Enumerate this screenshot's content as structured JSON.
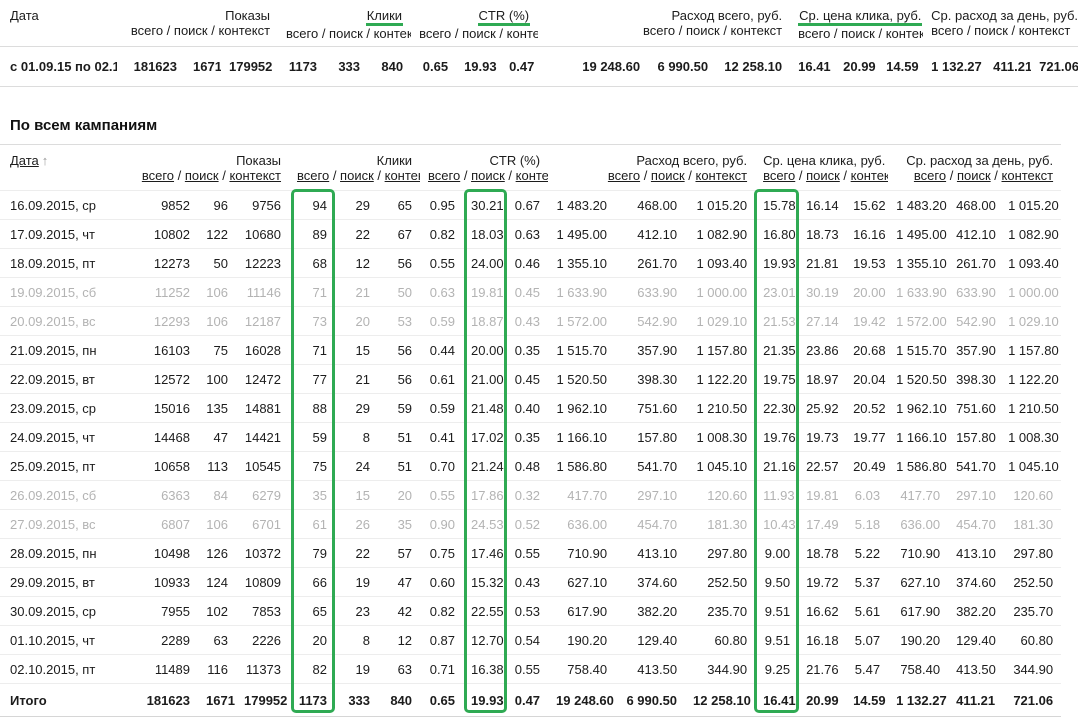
{
  "accent_color": "#2faa53",
  "summary_table": {
    "date_header": "Дата",
    "sub_label": "всего / поиск / контекст",
    "groups": [
      {
        "label": "Показы",
        "highlighted": false
      },
      {
        "label": "Клики",
        "highlighted": true
      },
      {
        "label": "CTR (%)",
        "highlighted": true
      },
      {
        "label": "Расход всего, руб.",
        "highlighted": false
      },
      {
        "label": "Ср. цена клика, руб.",
        "highlighted": true
      },
      {
        "label": "Ср. расход за день, руб.",
        "highlighted": false
      }
    ],
    "row": {
      "period": "с 01.09.15 по 02.10.15",
      "values": [
        "181623",
        "1671",
        "179952",
        "1173",
        "333",
        "840",
        "0.65",
        "19.93",
        "0.47",
        "19 248.60",
        "6 990.50",
        "12 258.10",
        "16.41",
        "20.99",
        "14.59",
        "1 132.27",
        "411.21",
        "721.06"
      ]
    }
  },
  "section_title": "По всем кампаниям",
  "detail_table": {
    "date_header": "Дата",
    "sort_arrow": "↑",
    "separator": "/",
    "sub_links": [
      "всего",
      "поиск",
      "контекст"
    ],
    "groups": [
      {
        "label": "Показы"
      },
      {
        "label": "Клики"
      },
      {
        "label": "CTR (%)"
      },
      {
        "label": "Расход всего, руб."
      },
      {
        "label": "Ср. цена клика, руб."
      },
      {
        "label": "Ср. расход за день, руб."
      }
    ],
    "rows": [
      {
        "date": "16.09.2015, ср",
        "muted": false,
        "values": [
          "9852",
          "96",
          "9756",
          "94",
          "29",
          "65",
          "0.95",
          "30.21",
          "0.67",
          "1 483.20",
          "468.00",
          "1 015.20",
          "15.78",
          "16.14",
          "15.62",
          "1 483.20",
          "468.00",
          "1 015.20"
        ]
      },
      {
        "date": "17.09.2015, чт",
        "muted": false,
        "values": [
          "10802",
          "122",
          "10680",
          "89",
          "22",
          "67",
          "0.82",
          "18.03",
          "0.63",
          "1 495.00",
          "412.10",
          "1 082.90",
          "16.80",
          "18.73",
          "16.16",
          "1 495.00",
          "412.10",
          "1 082.90"
        ]
      },
      {
        "date": "18.09.2015, пт",
        "muted": false,
        "values": [
          "12273",
          "50",
          "12223",
          "68",
          "12",
          "56",
          "0.55",
          "24.00",
          "0.46",
          "1 355.10",
          "261.70",
          "1 093.40",
          "19.93",
          "21.81",
          "19.53",
          "1 355.10",
          "261.70",
          "1 093.40"
        ]
      },
      {
        "date": "19.09.2015, сб",
        "muted": true,
        "values": [
          "11252",
          "106",
          "11146",
          "71",
          "21",
          "50",
          "0.63",
          "19.81",
          "0.45",
          "1 633.90",
          "633.90",
          "1 000.00",
          "23.01",
          "30.19",
          "20.00",
          "1 633.90",
          "633.90",
          "1 000.00"
        ]
      },
      {
        "date": "20.09.2015, вс",
        "muted": true,
        "values": [
          "12293",
          "106",
          "12187",
          "73",
          "20",
          "53",
          "0.59",
          "18.87",
          "0.43",
          "1 572.00",
          "542.90",
          "1 029.10",
          "21.53",
          "27.14",
          "19.42",
          "1 572.00",
          "542.90",
          "1 029.10"
        ]
      },
      {
        "date": "21.09.2015, пн",
        "muted": false,
        "values": [
          "16103",
          "75",
          "16028",
          "71",
          "15",
          "56",
          "0.44",
          "20.00",
          "0.35",
          "1 515.70",
          "357.90",
          "1 157.80",
          "21.35",
          "23.86",
          "20.68",
          "1 515.70",
          "357.90",
          "1 157.80"
        ]
      },
      {
        "date": "22.09.2015, вт",
        "muted": false,
        "values": [
          "12572",
          "100",
          "12472",
          "77",
          "21",
          "56",
          "0.61",
          "21.00",
          "0.45",
          "1 520.50",
          "398.30",
          "1 122.20",
          "19.75",
          "18.97",
          "20.04",
          "1 520.50",
          "398.30",
          "1 122.20"
        ]
      },
      {
        "date": "23.09.2015, ср",
        "muted": false,
        "values": [
          "15016",
          "135",
          "14881",
          "88",
          "29",
          "59",
          "0.59",
          "21.48",
          "0.40",
          "1 962.10",
          "751.60",
          "1 210.50",
          "22.30",
          "25.92",
          "20.52",
          "1 962.10",
          "751.60",
          "1 210.50"
        ]
      },
      {
        "date": "24.09.2015, чт",
        "muted": false,
        "values": [
          "14468",
          "47",
          "14421",
          "59",
          "8",
          "51",
          "0.41",
          "17.02",
          "0.35",
          "1 166.10",
          "157.80",
          "1 008.30",
          "19.76",
          "19.73",
          "19.77",
          "1 166.10",
          "157.80",
          "1 008.30"
        ]
      },
      {
        "date": "25.09.2015, пт",
        "muted": false,
        "values": [
          "10658",
          "113",
          "10545",
          "75",
          "24",
          "51",
          "0.70",
          "21.24",
          "0.48",
          "1 586.80",
          "541.70",
          "1 045.10",
          "21.16",
          "22.57",
          "20.49",
          "1 586.80",
          "541.70",
          "1 045.10"
        ]
      },
      {
        "date": "26.09.2015, сб",
        "muted": true,
        "values": [
          "6363",
          "84",
          "6279",
          "35",
          "15",
          "20",
          "0.55",
          "17.86",
          "0.32",
          "417.70",
          "297.10",
          "120.60",
          "11.93",
          "19.81",
          "6.03",
          "417.70",
          "297.10",
          "120.60"
        ]
      },
      {
        "date": "27.09.2015, вс",
        "muted": true,
        "values": [
          "6807",
          "106",
          "6701",
          "61",
          "26",
          "35",
          "0.90",
          "24.53",
          "0.52",
          "636.00",
          "454.70",
          "181.30",
          "10.43",
          "17.49",
          "5.18",
          "636.00",
          "454.70",
          "181.30"
        ]
      },
      {
        "date": "28.09.2015, пн",
        "muted": false,
        "values": [
          "10498",
          "126",
          "10372",
          "79",
          "22",
          "57",
          "0.75",
          "17.46",
          "0.55",
          "710.90",
          "413.10",
          "297.80",
          "9.00",
          "18.78",
          "5.22",
          "710.90",
          "413.10",
          "297.80"
        ]
      },
      {
        "date": "29.09.2015, вт",
        "muted": false,
        "values": [
          "10933",
          "124",
          "10809",
          "66",
          "19",
          "47",
          "0.60",
          "15.32",
          "0.43",
          "627.10",
          "374.60",
          "252.50",
          "9.50",
          "19.72",
          "5.37",
          "627.10",
          "374.60",
          "252.50"
        ]
      },
      {
        "date": "30.09.2015, ср",
        "muted": false,
        "values": [
          "7955",
          "102",
          "7853",
          "65",
          "23",
          "42",
          "0.82",
          "22.55",
          "0.53",
          "617.90",
          "382.20",
          "235.70",
          "9.51",
          "16.62",
          "5.61",
          "617.90",
          "382.20",
          "235.70"
        ]
      },
      {
        "date": "01.10.2015, чт",
        "muted": false,
        "values": [
          "2289",
          "63",
          "2226",
          "20",
          "8",
          "12",
          "0.87",
          "12.70",
          "0.54",
          "190.20",
          "129.40",
          "60.80",
          "9.51",
          "16.18",
          "5.07",
          "190.20",
          "129.40",
          "60.80"
        ]
      },
      {
        "date": "02.10.2015, пт",
        "muted": false,
        "values": [
          "11489",
          "116",
          "11373",
          "82",
          "19",
          "63",
          "0.71",
          "16.38",
          "0.55",
          "758.40",
          "413.50",
          "344.90",
          "9.25",
          "21.76",
          "5.47",
          "758.40",
          "413.50",
          "344.90"
        ]
      }
    ],
    "total": {
      "label": "Итого",
      "values": [
        "181623",
        "1671",
        "179952",
        "1173",
        "333",
        "840",
        "0.65",
        "19.93",
        "0.47",
        "19 248.60",
        "6 990.50",
        "12 258.10",
        "16.41",
        "20.99",
        "14.59",
        "1 132.27",
        "411.21",
        "721.06"
      ]
    }
  }
}
